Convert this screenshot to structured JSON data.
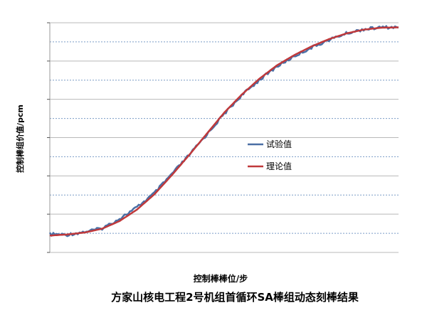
{
  "chart_data": {
    "type": "line",
    "title": "方家山核电工程2号机组首循环SA棒组动态刻棒结果",
    "xlabel": "控制棒棒位/步",
    "ylabel": "控制棒组价值/pcm",
    "xlim": [
      0,
      1
    ],
    "ylim": [
      0,
      6
    ],
    "grid": true,
    "legend": "center-right",
    "series": [
      {
        "name": "试验值",
        "color": "#4a6fa5",
        "x": [
          0.0,
          0.05,
          0.1,
          0.15,
          0.2,
          0.25,
          0.3,
          0.35,
          0.4,
          0.45,
          0.5,
          0.55,
          0.6,
          0.65,
          0.7,
          0.75,
          0.8,
          0.85,
          0.9,
          0.95,
          1.0
        ],
        "y": [
          0.48,
          0.46,
          0.54,
          0.63,
          0.88,
          1.18,
          1.55,
          2.05,
          2.55,
          3.08,
          3.62,
          4.1,
          4.5,
          4.85,
          5.12,
          5.35,
          5.55,
          5.72,
          5.83,
          5.88,
          5.88
        ]
      },
      {
        "name": "理论值",
        "color": "#c0393b",
        "x": [
          0.0,
          0.05,
          0.1,
          0.15,
          0.2,
          0.25,
          0.3,
          0.35,
          0.4,
          0.45,
          0.5,
          0.55,
          0.6,
          0.65,
          0.7,
          0.75,
          0.8,
          0.85,
          0.9,
          0.95,
          1.0
        ],
        "y": [
          0.44,
          0.47,
          0.52,
          0.62,
          0.82,
          1.12,
          1.52,
          2.02,
          2.55,
          3.1,
          3.65,
          4.12,
          4.53,
          4.88,
          5.15,
          5.38,
          5.57,
          5.72,
          5.82,
          5.87,
          5.88
        ]
      }
    ]
  }
}
